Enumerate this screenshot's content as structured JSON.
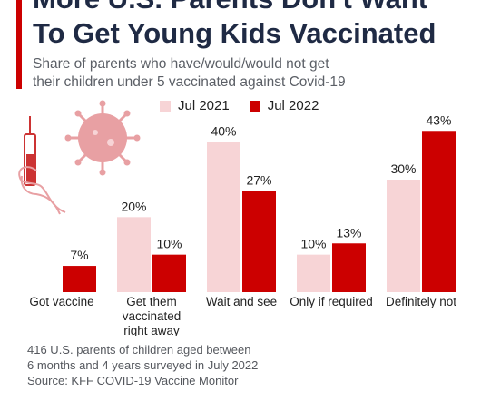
{
  "header": {
    "title_line1": "More U.S. Parents Don't Want",
    "title_line2": "To Get Young Kids Vaccinated",
    "subtitle_line1": "Share of parents who have/would/would not get",
    "subtitle_line2": "their children under 5 vaccinated against Covid-19"
  },
  "legend": [
    {
      "label": "Jul 2021",
      "color": "#f7d4d6"
    },
    {
      "label": "Jul 2022",
      "color": "#cc0000"
    }
  ],
  "chart_data": {
    "type": "bar",
    "categories": [
      [
        "Got vaccine"
      ],
      [
        "Get them",
        "vaccinated",
        "right away"
      ],
      [
        "Wait and see"
      ],
      [
        "Only if required"
      ],
      [
        "Definitely not"
      ]
    ],
    "series": [
      {
        "name": "Jul 2021",
        "color": "#f7d4d6",
        "values": [
          null,
          20,
          40,
          10,
          30
        ],
        "labels": [
          "",
          "20%",
          "40%",
          "10%",
          "30%"
        ]
      },
      {
        "name": "Jul 2022",
        "color": "#cc0000",
        "values": [
          7,
          10,
          27,
          13,
          43
        ],
        "labels": [
          "7%",
          "10%",
          "27%",
          "13%",
          "43%"
        ]
      }
    ],
    "ylim": [
      0,
      45
    ],
    "grid": false,
    "legend_position": "top"
  },
  "footnote": {
    "line1": "416 U.S. parents of children aged between",
    "line2": "6 months and 4 years surveyed in July 2022",
    "line3": "Source: KFF COVID-19 Vaccine Monitor"
  },
  "icons": [
    "syringe-icon",
    "virus-icon"
  ]
}
